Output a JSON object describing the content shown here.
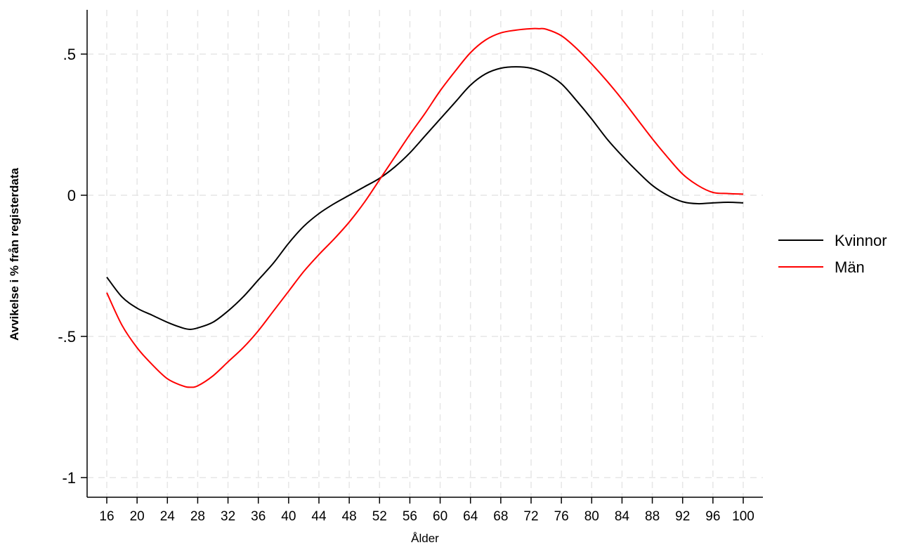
{
  "chart_data": {
    "type": "line",
    "xlabel": "Ålder",
    "ylabel": "Avvikelse i % från registerdata",
    "xlim": [
      16,
      100
    ],
    "ylim": [
      -1.05,
      0.65
    ],
    "xticks": [
      16,
      20,
      24,
      28,
      32,
      36,
      40,
      44,
      48,
      52,
      56,
      60,
      64,
      68,
      72,
      76,
      80,
      84,
      88,
      92,
      96,
      100
    ],
    "yticks": [
      -1,
      -0.5,
      0,
      0.5
    ],
    "ytick_labels": [
      "-1",
      "-.5",
      "0",
      ".5"
    ],
    "grid": true,
    "legend_position": "right",
    "series": [
      {
        "name": "Kvinnor",
        "color": "#000000",
        "x": [
          16,
          18,
          20,
          22,
          24,
          26,
          27,
          28,
          30,
          32,
          34,
          36,
          38,
          40,
          42,
          44,
          46,
          48,
          50,
          52,
          54,
          56,
          58,
          60,
          62,
          64,
          66,
          68,
          70,
          72,
          74,
          76,
          78,
          80,
          82,
          84,
          86,
          88,
          90,
          92,
          94,
          96,
          98,
          100
        ],
        "y": [
          -0.29,
          -0.36,
          -0.4,
          -0.425,
          -0.45,
          -0.47,
          -0.475,
          -0.47,
          -0.45,
          -0.41,
          -0.36,
          -0.3,
          -0.24,
          -0.17,
          -0.11,
          -0.065,
          -0.03,
          0.0,
          0.03,
          0.06,
          0.1,
          0.15,
          0.21,
          0.27,
          0.33,
          0.39,
          0.43,
          0.45,
          0.455,
          0.45,
          0.43,
          0.395,
          0.335,
          0.27,
          0.2,
          0.14,
          0.085,
          0.035,
          0.0,
          -0.023,
          -0.03,
          -0.027,
          -0.025,
          -0.027
        ]
      },
      {
        "name": "Män",
        "color": "#ff0000",
        "x": [
          16,
          18,
          20,
          22,
          24,
          26,
          27,
          28,
          30,
          32,
          34,
          36,
          38,
          40,
          42,
          44,
          46,
          48,
          50,
          52,
          54,
          56,
          58,
          60,
          62,
          64,
          66,
          68,
          70,
          72,
          73,
          74,
          76,
          78,
          80,
          82,
          84,
          86,
          88,
          90,
          92,
          94,
          96,
          98,
          100
        ],
        "y": [
          -0.345,
          -0.46,
          -0.54,
          -0.6,
          -0.65,
          -0.675,
          -0.68,
          -0.675,
          -0.64,
          -0.59,
          -0.54,
          -0.48,
          -0.41,
          -0.34,
          -0.27,
          -0.21,
          -0.155,
          -0.095,
          -0.025,
          0.055,
          0.135,
          0.215,
          0.29,
          0.37,
          0.44,
          0.505,
          0.55,
          0.575,
          0.585,
          0.59,
          0.59,
          0.588,
          0.565,
          0.52,
          0.465,
          0.405,
          0.34,
          0.27,
          0.2,
          0.135,
          0.075,
          0.035,
          0.01,
          0.006,
          0.004
        ]
      }
    ]
  }
}
